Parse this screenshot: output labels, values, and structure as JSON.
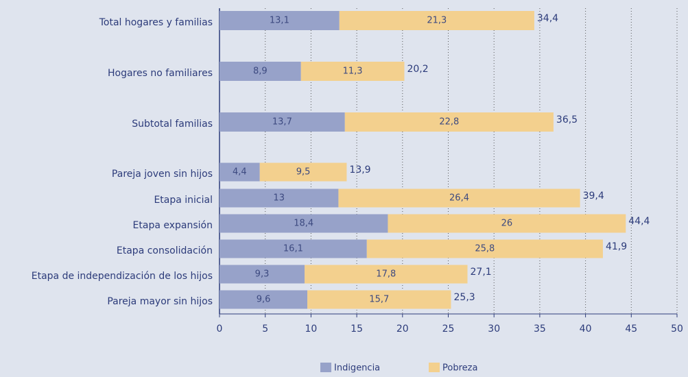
{
  "chart_data": {
    "type": "stacked-barh",
    "categories": [
      "Total hogares y familias",
      "Hogares no familiares",
      "Subtotal familias",
      "Pareja joven sin hijos",
      "Etapa inicial",
      "Etapa expansión",
      "Etapa consolidación",
      "Etapa  de independización de los hijos",
      "Pareja mayor sin hijos"
    ],
    "series": [
      {
        "name": "Indigencia",
        "color": "#97a2c9",
        "values": [
          13.1,
          8.9,
          13.7,
          4.4,
          13,
          18.4,
          16.1,
          9.3,
          9.6
        ],
        "value_labels": [
          "13,1",
          "8,9",
          "13,7",
          "4,4",
          "13",
          "18,4",
          "16,1",
          "9,3",
          "9,6"
        ]
      },
      {
        "name": "Pobreza",
        "color": "#f3d08e",
        "values": [
          21.3,
          11.3,
          22.8,
          9.5,
          26.4,
          26,
          25.8,
          17.8,
          15.7
        ],
        "value_labels": [
          "21,3",
          "11,3",
          "22,8",
          "9,5",
          "26,4",
          "26",
          "25,8",
          "17,8",
          "15,7"
        ]
      }
    ],
    "totals": [
      34.4,
      20.2,
      36.5,
      13.9,
      39.4,
      44.4,
      41.9,
      27.1,
      25.3
    ],
    "total_labels": [
      "34,4",
      "20,2",
      "36,5",
      "13,9",
      "39,4",
      "44,4",
      "41,9",
      "27,1",
      "25,3"
    ],
    "xlim": [
      0,
      50
    ],
    "xticks": [
      0,
      5,
      10,
      15,
      20,
      25,
      30,
      35,
      40,
      45,
      50
    ],
    "grid": true
  }
}
